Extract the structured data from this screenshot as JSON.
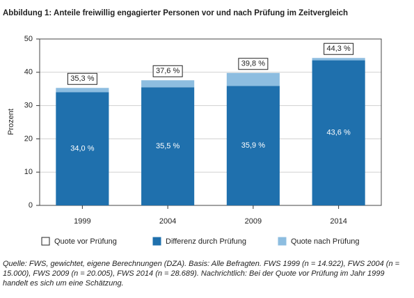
{
  "chart_data": {
    "type": "stacked_bar",
    "title": "Abbildung 1: Anteile freiwillig engagierter Personen vor und nach Prüfung im Zeitvergleich",
    "y_label": "Prozent",
    "categories": [
      "1999",
      "2004",
      "2009",
      "2014"
    ],
    "series": [
      {
        "name": "Differenz durch Prüfung",
        "color": "#1f70ad",
        "values": [
          34.0,
          35.5,
          35.9,
          43.6
        ],
        "value_labels": [
          "34,0 %",
          "35,5 %",
          "35,9 %",
          "43,6 %"
        ]
      },
      {
        "name": "Quote nach Prüfung",
        "color": "#8dbde0",
        "values": [
          1.3,
          2.1,
          3.9,
          0.7
        ]
      }
    ],
    "totals": {
      "name": "Quote vor Prüfung",
      "color": "#ffffff",
      "values": [
        35.3,
        37.6,
        39.8,
        44.3
      ],
      "value_labels": [
        "35,3 %",
        "37,6 %",
        "39,8 %",
        "44,3 %"
      ]
    },
    "ylim": [
      0,
      50
    ],
    "yticks": [
      0,
      10,
      20,
      30,
      40,
      50
    ],
    "grid": true,
    "note": "Quelle: FWS, gewichtet, eigene Berechnungen (DZA). Basis: Alle Befragten. FWS 1999 (n = 14.922), FWS 2004 (n = 15.000), FWS 2009 (n = 20.005), FWS 2014 (n = 28.689). Nachrichtlich: Bei der Quote vor Prüfung im Jahr 1999 handelt es sich um eine Schätzung."
  }
}
